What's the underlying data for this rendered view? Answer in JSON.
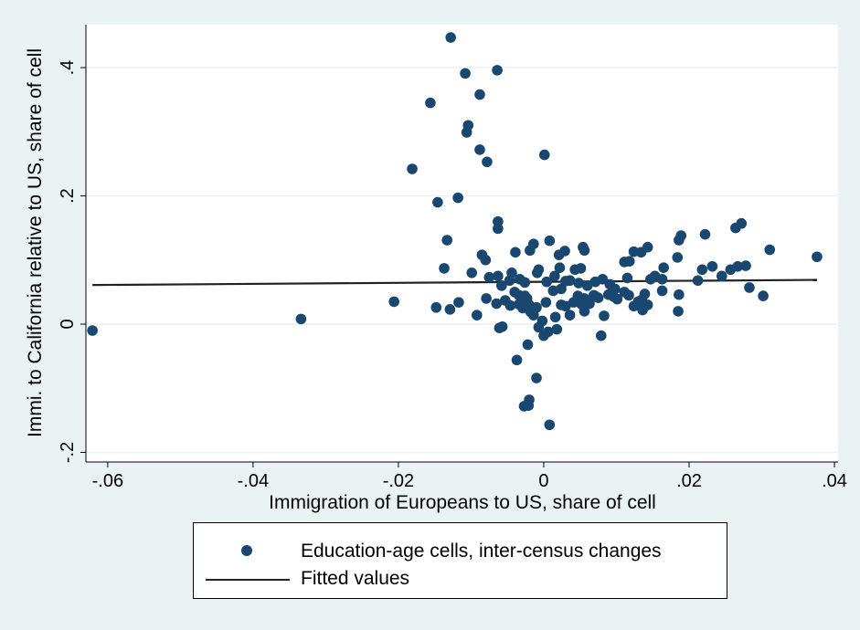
{
  "chart_data": {
    "type": "scatter",
    "xlabel": "Immigration of Europeans to US, share of cell",
    "ylabel": "Immi. to California relative to US, share of cell",
    "xlim": [
      -0.063,
      0.0405
    ],
    "ylim": [
      -0.215,
      0.467
    ],
    "x_ticks": [
      {
        "value": -0.06,
        "label": "-.06"
      },
      {
        "value": -0.04,
        "label": "-.04"
      },
      {
        "value": -0.02,
        "label": "-.02"
      },
      {
        "value": 0,
        "label": "0"
      },
      {
        "value": 0.02,
        "label": ".02"
      },
      {
        "value": 0.04,
        "label": ".04"
      }
    ],
    "y_ticks": [
      {
        "value": -0.2,
        "label": "-.2"
      },
      {
        "value": 0,
        "label": "0"
      },
      {
        "value": 0.2,
        "label": ".2"
      },
      {
        "value": 0.4,
        "label": ".4"
      }
    ],
    "grid": "horizontal",
    "legend_position": "bottom",
    "colors": {
      "marker": "#1a476f",
      "fit_line": "#222222",
      "outer_bg": "#eaf2f3",
      "plot_bg": "#ffffff",
      "grid": "#eaf2f3"
    },
    "series": [
      {
        "name": "Education-age cells, inter-census changes",
        "kind": "scatter",
        "points": [
          [
            -0.0621,
            -0.01
          ],
          [
            -0.0334,
            0.008
          ],
          [
            -0.0206,
            0.035
          ],
          [
            -0.0148,
            0.026
          ],
          [
            -0.0128,
            0.447
          ],
          [
            -0.0156,
            0.345
          ],
          [
            -0.0108,
            0.391
          ],
          [
            -0.0064,
            0.396
          ],
          [
            -0.0088,
            0.358
          ],
          [
            -0.0104,
            0.31
          ],
          [
            -0.0106,
            0.299
          ],
          [
            -0.0088,
            0.272
          ],
          [
            -0.0078,
            0.253
          ],
          [
            -0.0181,
            0.242
          ],
          [
            -0.0146,
            0.19
          ],
          [
            -0.0118,
            0.197
          ],
          [
            0.0001,
            0.264
          ],
          [
            -0.0133,
            0.131
          ],
          [
            -0.0063,
            0.16
          ],
          [
            -0.0063,
            0.149
          ],
          [
            -0.0137,
            0.087
          ],
          [
            -0.0099,
            0.08
          ],
          [
            -0.0085,
            0.108
          ],
          [
            -0.008,
            0.1
          ],
          [
            -0.0047,
            0.068
          ],
          [
            -0.0039,
            0.112
          ],
          [
            -0.0033,
            0.07
          ],
          [
            -0.0063,
            0.075
          ],
          [
            -0.0058,
            0.06
          ],
          [
            -0.0044,
            0.08
          ],
          [
            -0.0019,
            0.115
          ],
          [
            -0.0014,
            0.125
          ],
          [
            -0.0009,
            0.08
          ],
          [
            -0.0007,
            0.085
          ],
          [
            0.0004,
            0.066
          ],
          [
            0.0008,
            0.13
          ],
          [
            0.0015,
            0.075
          ],
          [
            0.0021,
            0.108
          ],
          [
            0.0029,
            0.114
          ],
          [
            0.0036,
            0.068
          ],
          [
            0.0043,
            0.085
          ],
          [
            0.0051,
            0.087
          ],
          [
            0.0054,
            0.12
          ],
          [
            0.0056,
            0.115
          ],
          [
            0.006,
            0.06
          ],
          [
            0.0071,
            0.066
          ],
          [
            0.0081,
            0.07
          ],
          [
            0.0091,
            0.062
          ],
          [
            0.0098,
            0.055
          ],
          [
            0.0111,
            0.097
          ],
          [
            0.0118,
            0.098
          ],
          [
            0.0124,
            0.113
          ],
          [
            0.0134,
            0.112
          ],
          [
            0.0143,
            0.12
          ],
          [
            0.0147,
            0.07
          ],
          [
            0.0163,
            0.07
          ],
          [
            0.0165,
            0.088
          ],
          [
            0.0184,
            0.104
          ],
          [
            0.0186,
            0.131
          ],
          [
            0.0189,
            0.138
          ],
          [
            0.0212,
            0.068
          ],
          [
            0.0218,
            0.085
          ],
          [
            0.0222,
            0.14
          ],
          [
            0.0232,
            0.09
          ],
          [
            0.0245,
            0.075
          ],
          [
            0.0257,
            0.085
          ],
          [
            0.0264,
            0.15
          ],
          [
            0.0267,
            0.09
          ],
          [
            0.0272,
            0.157
          ],
          [
            0.0278,
            0.091
          ],
          [
            0.0283,
            0.057
          ],
          [
            0.0302,
            0.044
          ],
          [
            0.0311,
            0.116
          ],
          [
            0.0376,
            0.105
          ],
          [
            -0.0129,
            0.023
          ],
          [
            -0.0117,
            0.034
          ],
          [
            -0.0092,
            0.014
          ],
          [
            -0.0079,
            0.04
          ],
          [
            -0.0065,
            0.032
          ],
          [
            -0.0061,
            -0.006
          ],
          [
            -0.0057,
            -0.004
          ],
          [
            -0.0053,
            0.037
          ],
          [
            -0.0046,
            0.029
          ],
          [
            -0.004,
            0.05
          ],
          [
            -0.0034,
            0.045
          ],
          [
            -0.0034,
            0.031
          ],
          [
            -0.0029,
            0.025
          ],
          [
            -0.0026,
            0.044
          ],
          [
            -0.0023,
            0.04
          ],
          [
            -0.002,
            0.03
          ],
          [
            -0.0018,
            0.019
          ],
          [
            -0.0014,
            0.014
          ],
          [
            -0.001,
            0.026
          ],
          [
            -0.0007,
            -0.005
          ],
          [
            -0.0002,
            0.005
          ],
          [
            0.0,
            -0.018
          ],
          [
            0.0003,
            0.034
          ],
          [
            0.0006,
            -0.012
          ],
          [
            0.0013,
            0.052
          ],
          [
            0.0016,
            0.011
          ],
          [
            0.0018,
            -0.008
          ],
          [
            0.0024,
            0.055
          ],
          [
            0.003,
            0.028
          ],
          [
            0.0036,
            0.014
          ],
          [
            0.0041,
            0.034
          ],
          [
            0.0047,
            0.044
          ],
          [
            0.0052,
            0.031
          ],
          [
            0.0056,
            0.02
          ],
          [
            0.0063,
            0.032
          ],
          [
            0.0069,
            0.045
          ],
          [
            0.0075,
            0.041
          ],
          [
            0.0079,
            -0.018
          ],
          [
            0.0083,
            0.013
          ],
          [
            0.0089,
            0.046
          ],
          [
            0.0096,
            0.043
          ],
          [
            0.0101,
            0.039
          ],
          [
            0.0111,
            0.05
          ],
          [
            0.0117,
            0.045
          ],
          [
            0.0124,
            0.028
          ],
          [
            0.013,
            0.035
          ],
          [
            0.0135,
            0.038
          ],
          [
            0.0136,
            0.022
          ],
          [
            0.0139,
            0.047
          ],
          [
            0.0143,
            0.03
          ],
          [
            0.0153,
            0.075
          ],
          [
            0.0163,
            0.052
          ],
          [
            0.0185,
            0.02
          ],
          [
            0.0186,
            0.046
          ],
          [
            -0.0037,
            -0.056
          ],
          [
            -0.0027,
            -0.128
          ],
          [
            -0.0021,
            -0.127
          ],
          [
            -0.002,
            -0.118
          ],
          [
            -0.001,
            -0.084
          ],
          [
            -0.0022,
            -0.032
          ],
          [
            0.0008,
            -0.157
          ],
          [
            0.0022,
            0.088
          ],
          [
            0.003,
            0.067
          ],
          [
            0.0048,
            0.064
          ],
          [
            0.0072,
            0.043
          ],
          [
            0.0115,
            0.072
          ],
          [
            -0.0075,
            0.073
          ],
          [
            -0.0026,
            0.065
          ],
          [
            0.0024,
            0.03
          ],
          [
            0.0056,
            0.04
          ]
        ]
      },
      {
        "name": "Fitted values",
        "kind": "line",
        "points": [
          [
            -0.0621,
            0.061
          ],
          [
            0.0376,
            0.069
          ]
        ]
      }
    ]
  }
}
